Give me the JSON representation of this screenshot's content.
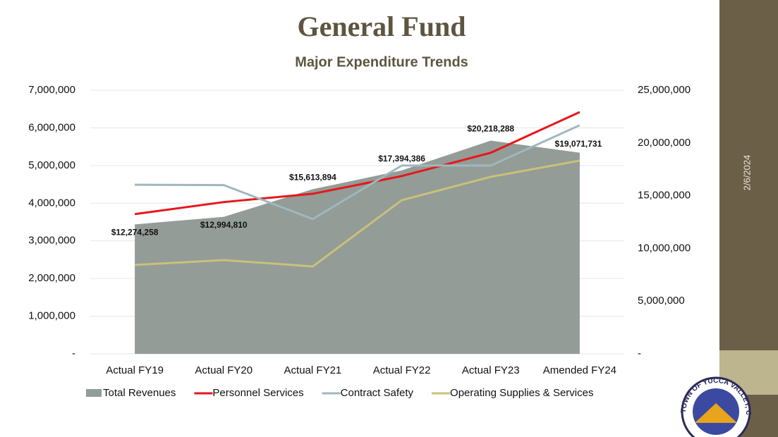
{
  "chart_data": {
    "type": "line",
    "title": "General Fund",
    "subtitle": "Major Expenditure Trends",
    "categories": [
      "Actual FY19",
      "Actual FY20",
      "Actual FY21",
      "Actual FY22",
      "Actual FY23",
      "Amended FY24"
    ],
    "ylim": [
      0,
      7000000
    ],
    "yticks": [
      {
        "value": 0,
        "label": "-"
      },
      {
        "value": 1000000,
        "label": "1,000,000"
      },
      {
        "value": 2000000,
        "label": "2,000,000"
      },
      {
        "value": 3000000,
        "label": "3,000,000"
      },
      {
        "value": 4000000,
        "label": "4,000,000"
      },
      {
        "value": 5000000,
        "label": "5,000,000"
      },
      {
        "value": 6000000,
        "label": "6,000,000"
      },
      {
        "value": 7000000,
        "label": "7,000,000"
      }
    ],
    "y2lim": [
      0,
      25000000
    ],
    "y2ticks": [
      {
        "value": 0,
        "label": "-"
      },
      {
        "value": 5000000,
        "label": "5,000,000"
      },
      {
        "value": 10000000,
        "label": "10,000,000"
      },
      {
        "value": 15000000,
        "label": "15,000,000"
      },
      {
        "value": 20000000,
        "label": "20,000,000"
      },
      {
        "value": 25000000,
        "label": "25,000,000"
      }
    ],
    "grid": true,
    "series": [
      {
        "name": "Total Revenues",
        "type": "area",
        "axis": "y2",
        "color": "#939c97",
        "values": [
          12274258,
          12994810,
          15613894,
          17394386,
          20218288,
          19071731
        ],
        "value_labels": [
          "$12,274,258",
          "$12,994,810",
          "$15,613,894",
          "$17,394,386",
          "$20,218,288",
          "$19,071,731"
        ]
      },
      {
        "name": "Personnel Services",
        "color": "#e8161b",
        "values": [
          3710000,
          4030000,
          4250000,
          4720000,
          5340000,
          6420000
        ]
      },
      {
        "name": "Contract Safety",
        "color": "#9fb8bc",
        "values": [
          4490000,
          4480000,
          3580000,
          5000000,
          5000000,
          6070000
        ]
      },
      {
        "name": "Operating Supplies & Services",
        "color": "#c9c07a",
        "values": [
          2360000,
          2490000,
          2320000,
          4080000,
          4700000,
          5130000
        ]
      }
    ]
  },
  "date": "2/6/2024",
  "logo_text": "TOWN OF YUCCA VALLEY, CALIFORNIA"
}
